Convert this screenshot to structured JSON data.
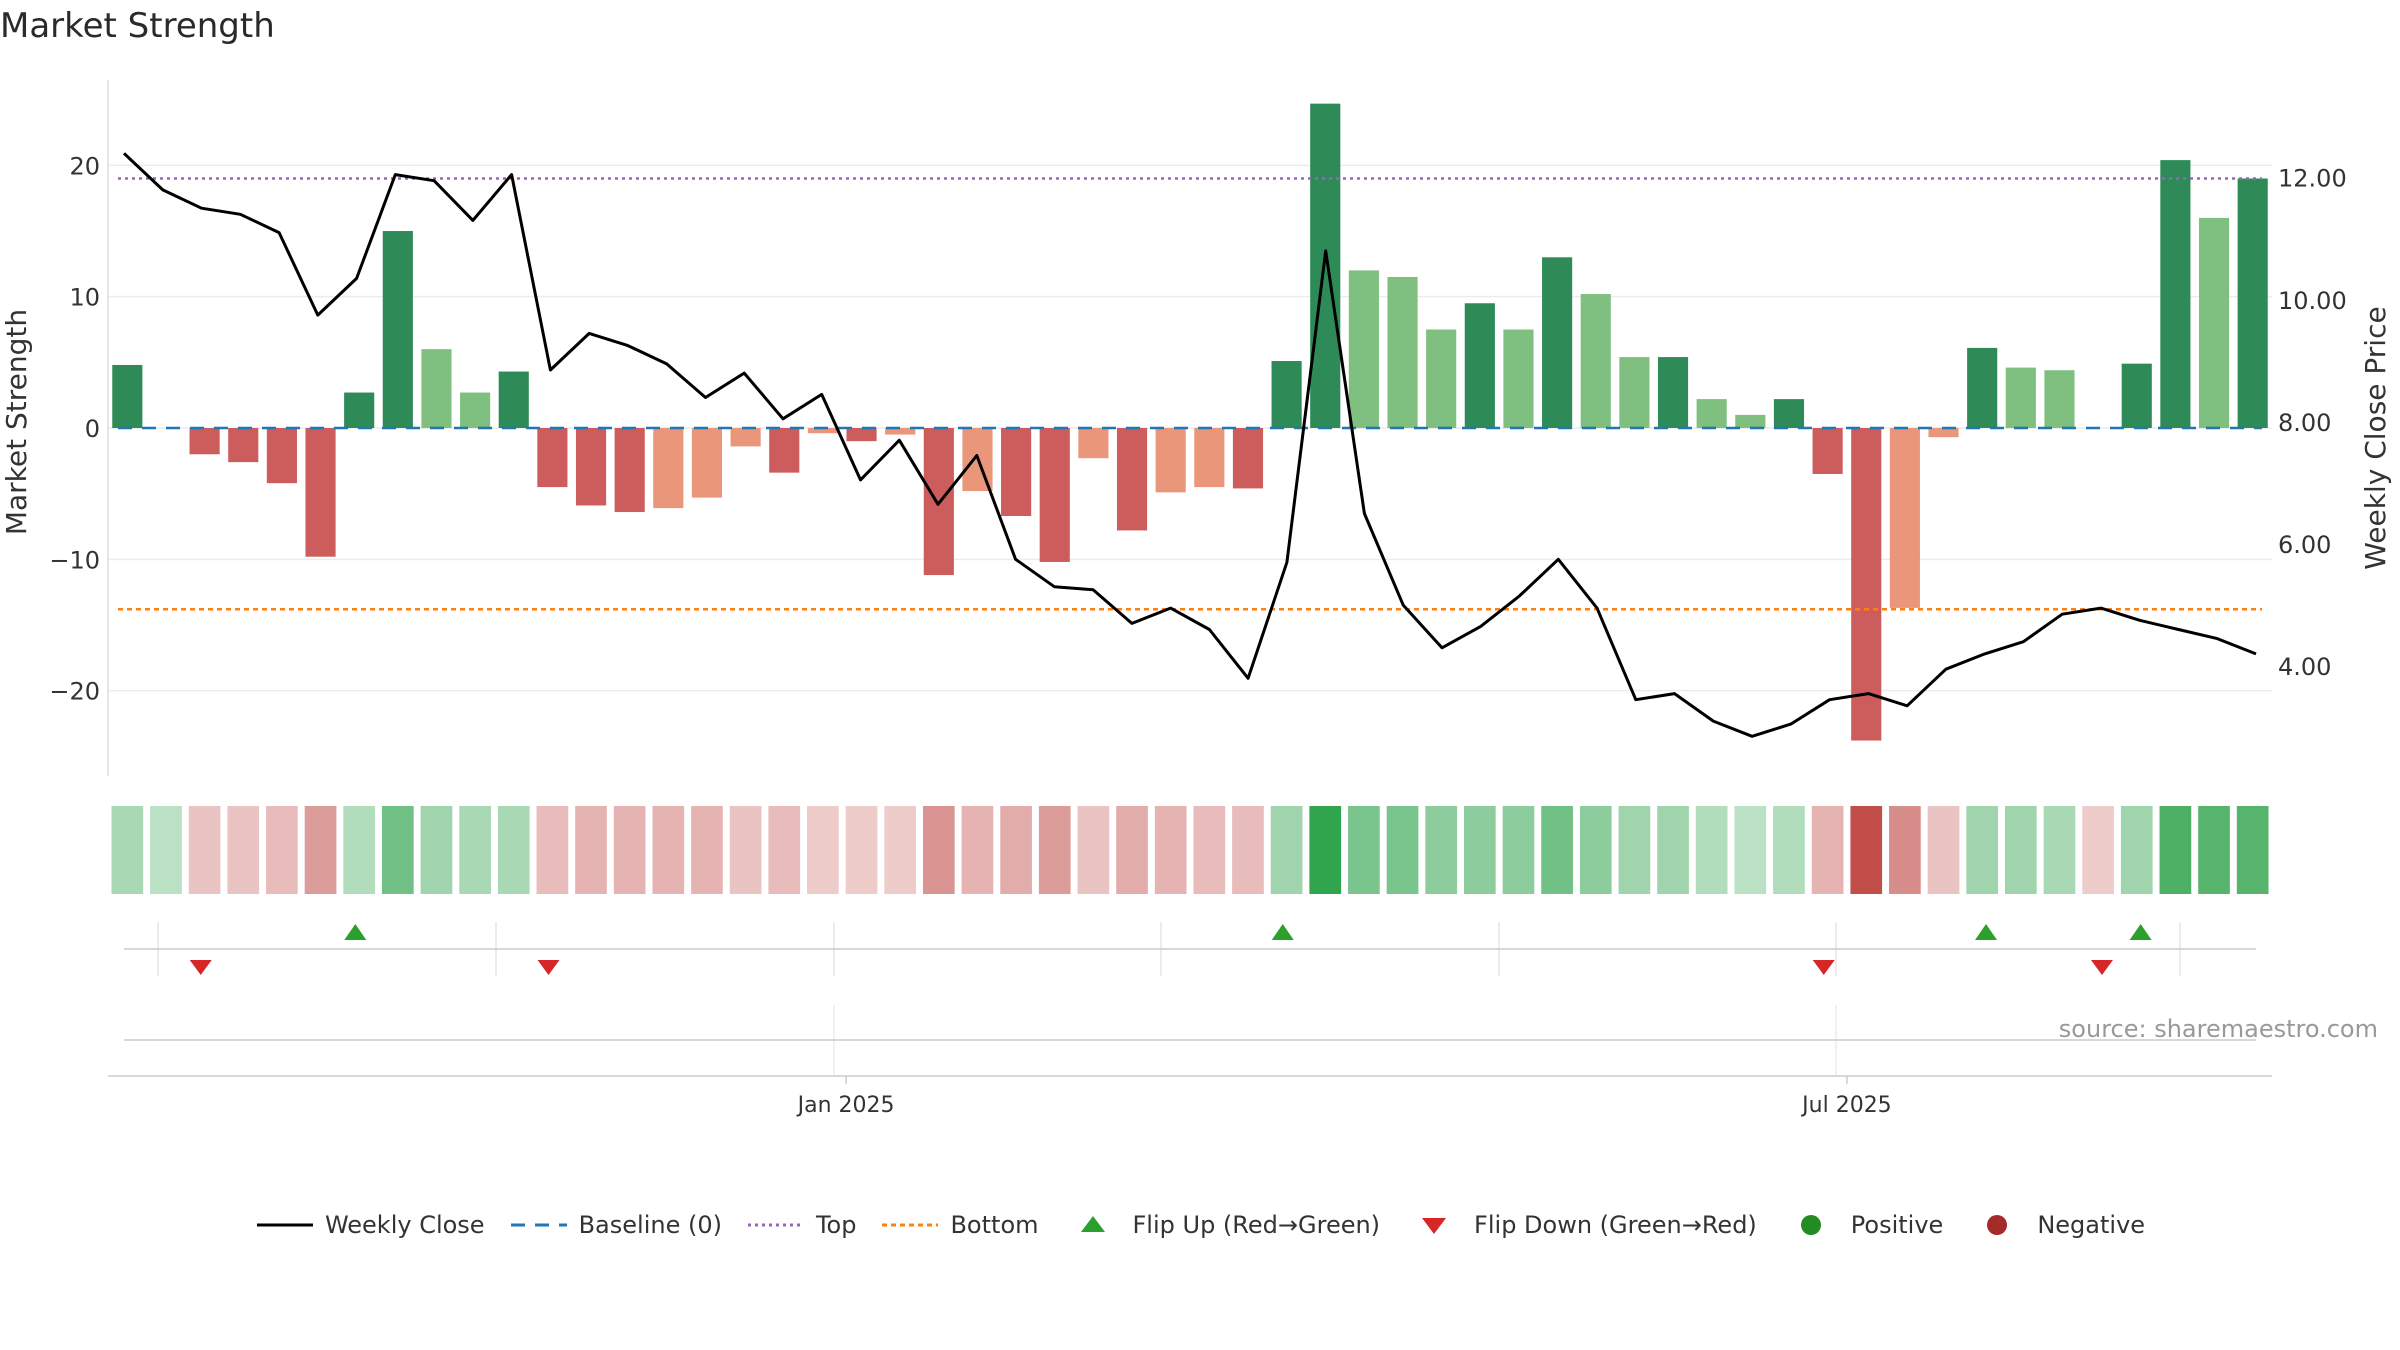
{
  "title": "Market Strength",
  "source": "source: sharemaestro.com",
  "colors": {
    "strong_pos": "#2e8b57",
    "weak_pos": "#7fbf7f",
    "strong_neg": "#cd5c5c",
    "weak_neg": "#e9967a",
    "price_line": "#000000",
    "baseline": "#1f77b4",
    "top": "#9467bd",
    "bottom": "#ff7f0e",
    "flip_up": "#2ca02c",
    "flip_down": "#d62728",
    "positive": "#228b22",
    "negative": "#a52a2a"
  },
  "chart_data": {
    "type": "bar",
    "ylabel": "Market Strength",
    "y2label": "Weekly Close Price",
    "ylim": [
      -26.5,
      26.5
    ],
    "y_ticks": [
      20,
      10,
      0,
      -10,
      -20
    ],
    "y_tick_labels": [
      "20",
      "10",
      "0",
      "−10",
      "−20"
    ],
    "y2lim": [
      2.2,
      13.6
    ],
    "y2_ticks": [
      12,
      10,
      8,
      6,
      4
    ],
    "y2_tick_labels": [
      "12.00",
      "10.00",
      "8.00",
      "6.00",
      "4.00"
    ],
    "x_tick_labels": [
      "Jan 2025",
      "Jul 2025"
    ],
    "x_tick_positions": [
      18.6,
      44.5
    ],
    "top_level": 19,
    "bottom_level": -13.8,
    "baseline_level": 0,
    "strength": [
      4.8,
      0,
      -2,
      -2.6,
      -4.2,
      -9.8,
      2.7,
      15,
      6,
      2.7,
      4.3,
      -4.5,
      -5.9,
      -6.4,
      -6.1,
      -5.3,
      -1.4,
      -3.4,
      -0.4,
      -1,
      -0.5,
      -11.2,
      -4.8,
      -6.7,
      -10.2,
      -2.3,
      -7.8,
      -4.9,
      -4.5,
      -4.6,
      5.1,
      24.7,
      12,
      11.5,
      7.5,
      9.5,
      7.5,
      13,
      10.2,
      5.4,
      5.4,
      2.2,
      1,
      2.2,
      -3.5,
      -23.8,
      -13.7,
      -0.7,
      6.1,
      4.6,
      4.4,
      0,
      4.9,
      20.4,
      16,
      19
    ],
    "strength_class": [
      "sp",
      "n",
      "sn",
      "sn",
      "sn",
      "sn",
      "sp",
      "sp",
      "wp",
      "wp",
      "sp",
      "sn",
      "sn",
      "sn",
      "wn",
      "wn",
      "wn",
      "sn",
      "wn",
      "sn",
      "wn",
      "sn",
      "wn",
      "sn",
      "sn",
      "wn",
      "sn",
      "wn",
      "wn",
      "sn",
      "sp",
      "sp",
      "wp",
      "wp",
      "wp",
      "sp",
      "wp",
      "sp",
      "wp",
      "wp",
      "sp",
      "wp",
      "wp",
      "sp",
      "sn",
      "sn",
      "wn",
      "wn",
      "sp",
      "wp",
      "wp",
      "n",
      "sp",
      "sp",
      "wp",
      "sp"
    ],
    "weekly_close": [
      12.4,
      11.8,
      11.5,
      11.4,
      11.1,
      9.75,
      10.35,
      12.05,
      11.95,
      11.3,
      12.05,
      8.85,
      9.45,
      9.25,
      8.95,
      8.4,
      8.8,
      8.05,
      8.45,
      7.05,
      7.7,
      6.65,
      7.45,
      5.75,
      5.3,
      5.25,
      4.7,
      4.95,
      4.6,
      3.8,
      5.7,
      10.8,
      6.5,
      5.0,
      4.3,
      4.65,
      5.15,
      5.75,
      4.95,
      3.45,
      3.55,
      3.1,
      2.85,
      3.05,
      3.45,
      3.55,
      3.35,
      3.95,
      4.2,
      4.4,
      4.85,
      4.95,
      4.75,
      4.6,
      4.45,
      4.2
    ],
    "heat_strip": [
      0.3,
      0.2,
      -0.2,
      -0.2,
      -0.25,
      -0.45,
      0.25,
      0.6,
      0.35,
      0.3,
      0.3,
      -0.25,
      -0.3,
      -0.3,
      -0.3,
      -0.3,
      -0.2,
      -0.25,
      -0.15,
      -0.15,
      -0.15,
      -0.5,
      -0.3,
      -0.35,
      -0.45,
      -0.2,
      -0.35,
      -0.3,
      -0.25,
      -0.25,
      0.35,
      0.95,
      0.55,
      0.55,
      0.45,
      0.45,
      0.45,
      0.6,
      0.45,
      0.35,
      0.35,
      0.25,
      0.2,
      0.25,
      -0.3,
      -0.95,
      -0.55,
      -0.2,
      0.35,
      0.35,
      0.3,
      -0.15,
      0.35,
      0.8,
      0.75,
      0.75
    ],
    "flip_up_weeks": [
      6.4,
      30.4,
      48.6,
      52.6
    ],
    "flip_down_weeks": [
      2.4,
      11.4,
      44.4,
      51.6
    ],
    "weeks": 56
  },
  "legend": [
    {
      "key": "line",
      "label": "Weekly Close"
    },
    {
      "key": "baseline",
      "label": "Baseline (0)"
    },
    {
      "key": "top",
      "label": "Top"
    },
    {
      "key": "bottom",
      "label": "Bottom"
    },
    {
      "key": "flip_up",
      "label": "Flip Up (Red→Green)"
    },
    {
      "key": "flip_down",
      "label": "Flip Down (Green→Red)"
    },
    {
      "key": "positive",
      "label": "Positive"
    },
    {
      "key": "negative",
      "label": "Negative"
    }
  ]
}
